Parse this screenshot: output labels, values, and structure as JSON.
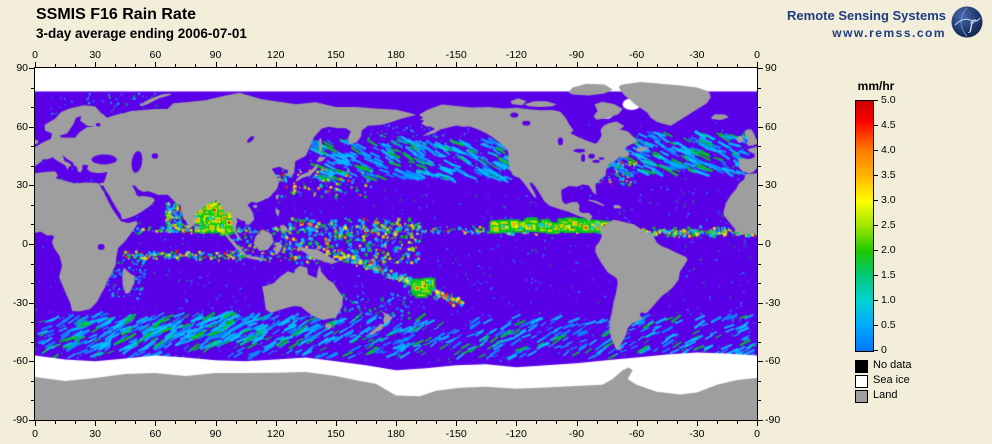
{
  "header": {
    "title": "SSMIS F16 Rain Rate",
    "subtitle": "3-day average ending 2006-07-01"
  },
  "brand": {
    "name": "Remote Sensing Systems",
    "url": "www.remss.com"
  },
  "map": {
    "lon_ticks": [
      "0",
      "30",
      "60",
      "90",
      "120",
      "150",
      "180",
      "-150",
      "-120",
      "-90",
      "-60",
      "-30",
      "0"
    ],
    "lat_ticks": [
      "90",
      "60",
      "30",
      "0",
      "-30",
      "-60",
      "-90"
    ]
  },
  "colorbar": {
    "unit": "mm/hr",
    "tick_labels": [
      "5.0",
      "4.5",
      "4.0",
      "3.5",
      "3.0",
      "2.5",
      "2.0",
      "1.5",
      "1.0",
      "0.5",
      "0"
    ],
    "stops": [
      {
        "value": 5.0,
        "color": "#c80000"
      },
      {
        "value": 4.6,
        "color": "#ff0000"
      },
      {
        "value": 4.0,
        "color": "#ff7d00"
      },
      {
        "value": 3.5,
        "color": "#ffb400"
      },
      {
        "value": 3.0,
        "color": "#ffff00"
      },
      {
        "value": 2.5,
        "color": "#a0e600"
      },
      {
        "value": 2.0,
        "color": "#1ec800"
      },
      {
        "value": 1.5,
        "color": "#00c878"
      },
      {
        "value": 1.0,
        "color": "#00d2d2"
      },
      {
        "value": 0.5,
        "color": "#00aaff"
      },
      {
        "value": 0.0,
        "color": "#0078ff"
      }
    ]
  },
  "legend": {
    "items": [
      {
        "label": "No data",
        "color": "#000000"
      },
      {
        "label": "Sea ice",
        "color": "#ffffff"
      },
      {
        "label": "Land",
        "color": "#9e9e9e"
      }
    ]
  },
  "colors": {
    "background": "#f2eeda",
    "ocean": "#5a00e8",
    "land": "#9e9e9e",
    "sea_ice": "#ffffff",
    "no_data": "#000000",
    "brand_text": "#1e3c82",
    "rain": {
      "blue": "#0096ff",
      "cyan": "#00c8ff",
      "green": "#00c81e",
      "ygreen": "#a0e600",
      "yellow": "#ffeb00",
      "orange": "#ff9600",
      "red": "#ff1e00",
      "dred": "#c80000"
    }
  },
  "chart_data": {
    "type": "heatmap",
    "title": "SSMIS F16 Rain Rate",
    "subtitle": "3-day average ending 2006-07-01",
    "variable": "rain rate",
    "unit": "mm/hr",
    "scale_range": [
      0,
      5
    ],
    "scale_ticks": [
      5.0,
      4.5,
      4.0,
      3.5,
      3.0,
      2.5,
      2.0,
      1.5,
      1.0,
      0.5,
      0
    ],
    "projection": "equirectangular",
    "lon_axis_ticks": [
      0,
      30,
      60,
      90,
      120,
      150,
      180,
      -150,
      -120,
      -90,
      -60,
      -30,
      0
    ],
    "lat_axis_ticks": [
      90,
      60,
      30,
      0,
      -30,
      -60,
      -90
    ],
    "mask_categories": [
      "No data",
      "Sea ice",
      "Land"
    ]
  }
}
